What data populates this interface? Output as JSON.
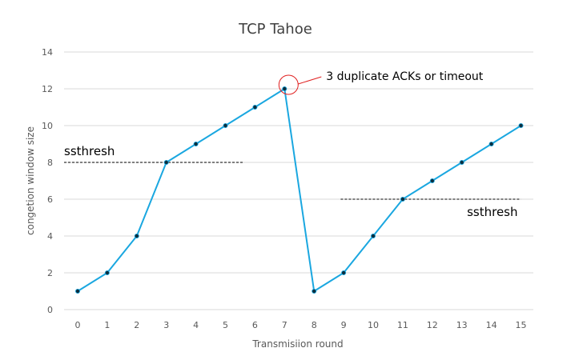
{
  "chart_data": {
    "type": "line",
    "title": "TCP Tahoe",
    "xlabel": "Transmisiion round",
    "ylabel": "congetion window size",
    "x": [
      0,
      1,
      2,
      3,
      4,
      5,
      6,
      7,
      8,
      9,
      10,
      11,
      12,
      13,
      14,
      15
    ],
    "series": [
      {
        "values": [
          1,
          2,
          4,
          8,
          9,
          10,
          11,
          12,
          1,
          2,
          4,
          6,
          7,
          8,
          9,
          10
        ],
        "color": "#1aa7e0",
        "marker_color": "#0b2e3f"
      }
    ],
    "xlim": [
      0,
      15
    ],
    "ylim": [
      0,
      14
    ],
    "y_ticks": [
      0,
      2,
      4,
      6,
      8,
      10,
      12,
      14
    ],
    "grid": "horizontal",
    "annotations": [
      {
        "text": "ssthresh",
        "line_y": 8,
        "x_range": [
          0,
          5.6
        ]
      },
      {
        "text": "ssthresh",
        "line_y": 6,
        "x_range": [
          8.9,
          15
        ]
      },
      {
        "text": "3 duplicate ACKs or timeout",
        "target_x": 7,
        "target_y": 12,
        "marker": "red-circle"
      }
    ],
    "colors": {
      "grid": "#d9d9d9",
      "threshold_line": "#000000",
      "callout_circle": "#e02020",
      "callout_line": "#e02020"
    }
  }
}
